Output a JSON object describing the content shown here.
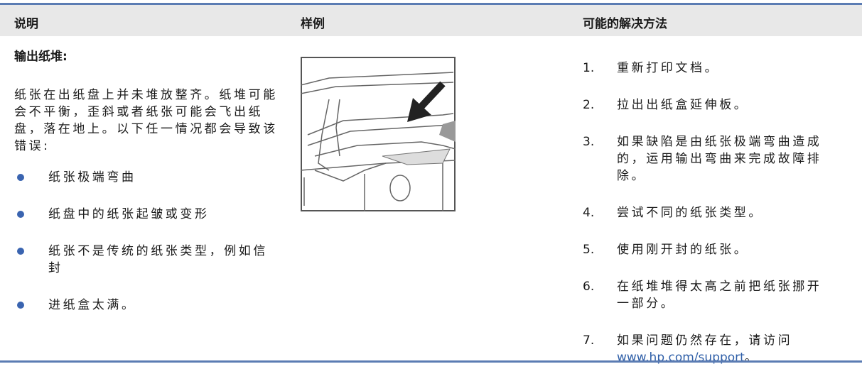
{
  "table": {
    "headers": [
      "说明",
      "样例",
      "可能的解决方法"
    ],
    "description": {
      "title": "输出纸堆:",
      "text": "纸张在出纸盘上并未堆放整齐。纸堆可能会不平衡，歪斜或者纸张可能会飞出纸盘，落在地上。以下任一情况都会导致该错误:",
      "bullets": [
        "纸张极端弯曲",
        "纸盘中的纸张起皱或变形",
        "纸张不是传统的纸张类型，例如信封",
        "进纸盒太满。"
      ]
    },
    "steps": [
      {
        "number": "1.",
        "text": "重新打印文档。"
      },
      {
        "number": "2.",
        "text": "拉出出纸盒延伸板。"
      },
      {
        "number": "3.",
        "text": "如果缺陷是由纸张极端弯曲造成的，运用输出弯曲来完成故障排除。"
      },
      {
        "number": "4.",
        "text": "尝试不同的纸张类型。"
      },
      {
        "number": "5.",
        "text": "使用刚开封的纸张。"
      },
      {
        "number": "6.",
        "text": "在纸堆堆得太高之前把纸张挪开一部分。"
      },
      {
        "number": "7.",
        "text": "如果问题仍然存在，请访问",
        "link": "www.hp.com/support",
        "suffix": "。"
      }
    ]
  }
}
